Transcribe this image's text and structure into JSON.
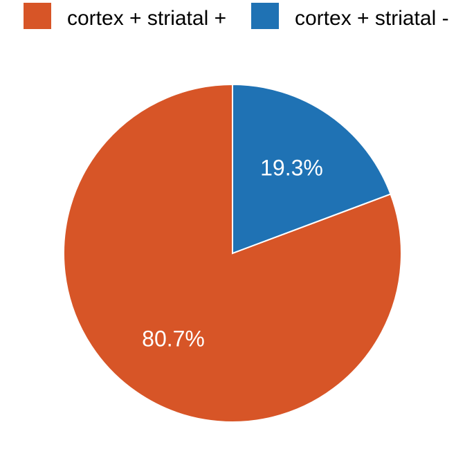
{
  "chart_data": {
    "type": "pie",
    "categories": [
      "cortex + striatal +",
      "cortex + striatal -"
    ],
    "values": [
      80.7,
      19.3
    ],
    "value_labels": [
      "80.7%",
      "19.3%"
    ],
    "colors": [
      "#D75527",
      "#1F72B4"
    ],
    "start_angle_deg": 0,
    "direction": "clockwise",
    "legend_position": "top",
    "title": "",
    "xlabel": "",
    "ylabel": ""
  }
}
